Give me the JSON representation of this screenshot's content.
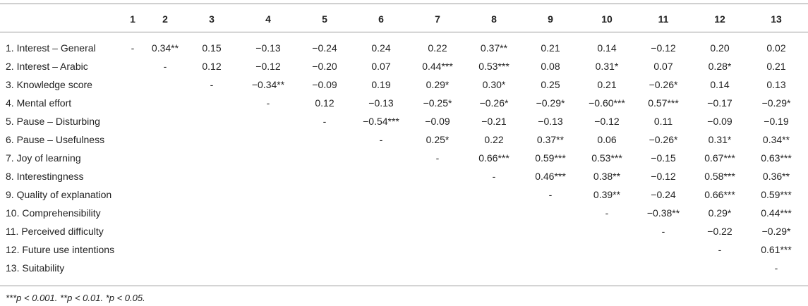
{
  "table": {
    "columns": [
      "1",
      "2",
      "3",
      "4",
      "5",
      "6",
      "7",
      "8",
      "9",
      "10",
      "11",
      "12",
      "13"
    ],
    "rows": [
      {
        "label": "1. Interest – General",
        "cells": [
          "-",
          "0.34**",
          "0.15",
          "−0.13",
          "−0.24",
          "0.24",
          "0.22",
          "0.37**",
          "0.21",
          "0.14",
          "−0.12",
          "0.20",
          "0.02"
        ]
      },
      {
        "label": "2. Interest – Arabic",
        "cells": [
          "-",
          "0.12",
          "−0.12",
          "−0.20",
          "0.07",
          "0.44***",
          "0.53***",
          "0.08",
          "0.31*",
          "0.07",
          "0.28*",
          "0.21"
        ]
      },
      {
        "label": "3. Knowledge score",
        "cells": [
          "-",
          "−0.34**",
          "−0.09",
          "0.19",
          "0.29*",
          "0.30*",
          "0.25",
          "0.21",
          "−0.26*",
          "0.14",
          "0.13"
        ]
      },
      {
        "label": "4. Mental effort",
        "cells": [
          "-",
          "0.12",
          "−0.13",
          "−0.25*",
          "−0.26*",
          "−0.29*",
          "−0.60***",
          "0.57***",
          "−0.17",
          "−0.29*"
        ]
      },
      {
        "label": "5. Pause – Disturbing",
        "cells": [
          "-",
          "−0.54***",
          "−0.09",
          "−0.21",
          "−0.13",
          "−0.12",
          "0.11",
          "−0.09",
          "−0.19"
        ]
      },
      {
        "label": "6. Pause – Usefulness",
        "cells": [
          "-",
          "0.25*",
          "0.22",
          "0.37**",
          "0.06",
          "−0.26*",
          "0.31*",
          "0.34**"
        ]
      },
      {
        "label": "7. Joy of learning",
        "cells": [
          "-",
          "0.66***",
          "0.59***",
          "0.53***",
          "−0.15",
          "0.67***",
          "0.63***"
        ]
      },
      {
        "label": "8. Interestingness",
        "cells": [
          "-",
          "0.46***",
          "0.38**",
          "−0.12",
          "0.58***",
          "0.36**"
        ]
      },
      {
        "label": "9. Quality of explanation",
        "cells": [
          "-",
          "0.39**",
          "−0.24",
          "0.66***",
          "0.59***"
        ]
      },
      {
        "label": "10. Comprehensibility",
        "cells": [
          "-",
          "−0.38**",
          "0.29*",
          "0.44***"
        ]
      },
      {
        "label": "11. Perceived difficulty",
        "cells": [
          "-",
          "−0.22",
          "−0.29*"
        ]
      },
      {
        "label": "12. Future use intentions",
        "cells": [
          "-",
          "0.61***"
        ]
      },
      {
        "label": "13. Suitability",
        "cells": [
          "-"
        ]
      }
    ],
    "footnote": "***p < 0.001. **p < 0.01. *p < 0.05."
  }
}
